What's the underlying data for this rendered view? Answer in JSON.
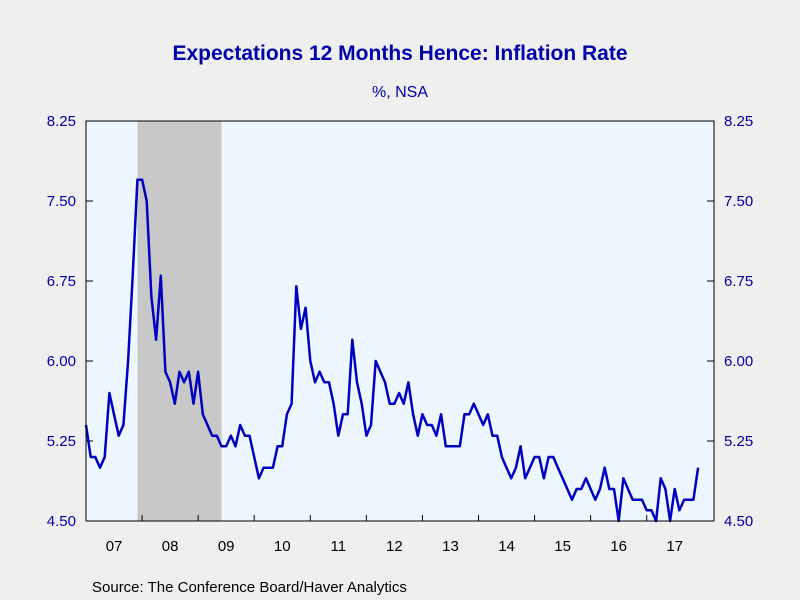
{
  "chart_data": {
    "type": "line",
    "title": "Expectations 12 Months Hence: Inflation Rate",
    "subtitle": "%, NSA",
    "source": "Source:  The Conference Board/Haver Analytics",
    "ylim": [
      4.5,
      8.25
    ],
    "y_ticks": [
      "8.25",
      "7.50",
      "6.75",
      "6.00",
      "5.25",
      "4.50"
    ],
    "x_range": [
      2007,
      2018.2
    ],
    "x_tick_labels": [
      "07",
      "08",
      "09",
      "10",
      "11",
      "12",
      "13",
      "14",
      "15",
      "16",
      "17"
    ],
    "recession": [
      2007.917,
      2009.417
    ],
    "grid": false,
    "colors": {
      "line": "#0000c0",
      "plot_bg": "#eef6ff",
      "recession": "#c8c8c8",
      "text": "#0000aa"
    },
    "series": [
      {
        "start_month": "2007-01",
        "values": [
          5.4,
          5.1,
          5.1,
          5.0,
          5.1,
          5.7,
          5.5,
          5.3,
          5.4,
          6.0,
          6.8,
          7.7,
          7.7,
          7.5,
          6.6,
          6.2,
          6.8,
          5.9,
          5.8,
          5.6,
          5.9,
          5.8,
          5.9,
          5.6,
          5.9,
          5.5,
          5.4,
          5.3,
          5.3,
          5.2,
          5.2,
          5.3,
          5.2,
          5.4,
          5.3,
          5.3,
          5.1,
          4.9,
          5.0,
          5.0,
          5.0,
          5.2,
          5.2,
          5.5,
          5.6,
          6.7,
          6.3,
          6.5,
          6.0,
          5.8,
          5.9,
          5.8,
          5.8,
          5.6,
          5.3,
          5.5,
          5.5,
          6.2,
          5.8,
          5.6,
          5.3,
          5.4,
          6.0,
          5.9,
          5.8,
          5.6,
          5.6,
          5.7,
          5.6,
          5.8,
          5.5,
          5.3,
          5.5,
          5.4,
          5.4,
          5.3,
          5.5,
          5.2,
          5.2,
          5.2,
          5.2,
          5.5,
          5.5,
          5.6,
          5.5,
          5.4,
          5.5,
          5.3,
          5.3,
          5.1,
          5.0,
          4.9,
          5.0,
          5.2,
          4.9,
          5.0,
          5.1,
          5.1,
          4.9,
          5.1,
          5.1,
          5.0,
          4.9,
          4.8,
          4.7,
          4.8,
          4.8,
          4.9,
          4.8,
          4.7,
          4.8,
          5.0,
          4.8,
          4.8,
          4.5,
          4.9,
          4.8,
          4.7,
          4.7,
          4.7,
          4.6,
          4.6,
          4.5,
          4.9,
          4.8,
          4.5,
          4.8,
          4.6,
          4.7,
          4.7,
          4.7,
          5.0
        ]
      }
    ]
  }
}
